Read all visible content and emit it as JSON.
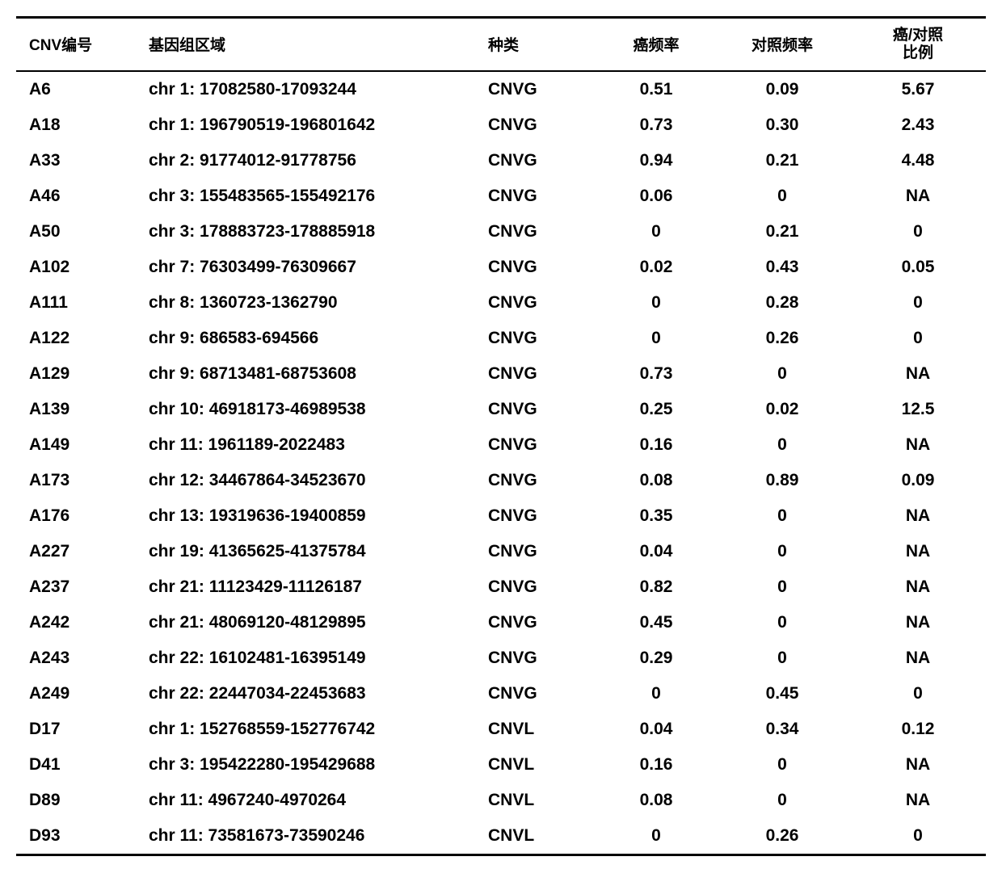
{
  "columns": [
    {
      "key": "id",
      "label": "CNV编号",
      "class": "col-id"
    },
    {
      "key": "region",
      "label": "基因组区域",
      "class": "col-region"
    },
    {
      "key": "type",
      "label": "种类",
      "class": "col-type"
    },
    {
      "key": "cancer_freq",
      "label": "癌频率",
      "class": "col-cancer"
    },
    {
      "key": "control_freq",
      "label": "对照频率",
      "class": "col-control"
    },
    {
      "key": "ratio",
      "label": "癌/对照\n比例",
      "class": "col-ratio"
    }
  ],
  "rows": [
    {
      "id": "A6",
      "region": "chr 1: 17082580-17093244",
      "type": "CNVG",
      "cancer_freq": "0.51",
      "control_freq": "0.09",
      "ratio": "5.67"
    },
    {
      "id": "A18",
      "region": "chr 1: 196790519-196801642",
      "type": "CNVG",
      "cancer_freq": "0.73",
      "control_freq": "0.30",
      "ratio": "2.43"
    },
    {
      "id": "A33",
      "region": "chr 2: 91774012-91778756",
      "type": "CNVG",
      "cancer_freq": "0.94",
      "control_freq": "0.21",
      "ratio": "4.48"
    },
    {
      "id": "A46",
      "region": "chr 3: 155483565-155492176",
      "type": "CNVG",
      "cancer_freq": "0.06",
      "control_freq": "0",
      "ratio": "NA"
    },
    {
      "id": "A50",
      "region": "chr 3: 178883723-178885918",
      "type": "CNVG",
      "cancer_freq": "0",
      "control_freq": "0.21",
      "ratio": "0"
    },
    {
      "id": "A102",
      "region": "chr 7: 76303499-76309667",
      "type": "CNVG",
      "cancer_freq": "0.02",
      "control_freq": "0.43",
      "ratio": "0.05"
    },
    {
      "id": "A111",
      "region": "chr 8: 1360723-1362790",
      "type": "CNVG",
      "cancer_freq": "0",
      "control_freq": "0.28",
      "ratio": "0"
    },
    {
      "id": "A122",
      "region": "chr 9: 686583-694566",
      "type": "CNVG",
      "cancer_freq": "0",
      "control_freq": "0.26",
      "ratio": "0"
    },
    {
      "id": "A129",
      "region": "chr 9: 68713481-68753608",
      "type": "CNVG",
      "cancer_freq": "0.73",
      "control_freq": "0",
      "ratio": "NA"
    },
    {
      "id": "A139",
      "region": "chr 10: 46918173-46989538",
      "type": "CNVG",
      "cancer_freq": "0.25",
      "control_freq": "0.02",
      "ratio": "12.5"
    },
    {
      "id": "A149",
      "region": "chr 11: 1961189-2022483",
      "type": "CNVG",
      "cancer_freq": "0.16",
      "control_freq": "0",
      "ratio": "NA"
    },
    {
      "id": "A173",
      "region": "chr 12: 34467864-34523670",
      "type": "CNVG",
      "cancer_freq": "0.08",
      "control_freq": "0.89",
      "ratio": "0.09"
    },
    {
      "id": "A176",
      "region": "chr 13: 19319636-19400859",
      "type": "CNVG",
      "cancer_freq": "0.35",
      "control_freq": "0",
      "ratio": "NA"
    },
    {
      "id": "A227",
      "region": "chr 19: 41365625-41375784",
      "type": "CNVG",
      "cancer_freq": "0.04",
      "control_freq": "0",
      "ratio": "NA"
    },
    {
      "id": "A237",
      "region": "chr 21: 11123429-11126187",
      "type": "CNVG",
      "cancer_freq": "0.82",
      "control_freq": "0",
      "ratio": "NA"
    },
    {
      "id": "A242",
      "region": "chr 21: 48069120-48129895",
      "type": "CNVG",
      "cancer_freq": "0.45",
      "control_freq": "0",
      "ratio": "NA"
    },
    {
      "id": "A243",
      "region": "chr 22: 16102481-16395149",
      "type": "CNVG",
      "cancer_freq": "0.29",
      "control_freq": "0",
      "ratio": "NA"
    },
    {
      "id": "A249",
      "region": "chr 22: 22447034-22453683",
      "type": "CNVG",
      "cancer_freq": "0",
      "control_freq": "0.45",
      "ratio": "0"
    },
    {
      "id": "D17",
      "region": "chr 1: 152768559-152776742",
      "type": "CNVL",
      "cancer_freq": "0.04",
      "control_freq": "0.34",
      "ratio": "0.12"
    },
    {
      "id": "D41",
      "region": "chr 3: 195422280-195429688",
      "type": "CNVL",
      "cancer_freq": "0.16",
      "control_freq": "0",
      "ratio": "NA"
    },
    {
      "id": "D89",
      "region": "chr 11: 4967240-4970264",
      "type": "CNVL",
      "cancer_freq": "0.08",
      "control_freq": "0",
      "ratio": "NA"
    },
    {
      "id": "D93",
      "region": "chr 11: 73581673-73590246",
      "type": "CNVL",
      "cancer_freq": "0",
      "control_freq": "0.26",
      "ratio": "0"
    }
  ],
  "style": {
    "background_color": "#ffffff",
    "text_color": "#000000",
    "border_color": "#000000",
    "header_fontsize": 19,
    "body_fontsize": 21,
    "header_border_top_width": 3,
    "header_border_bottom_width": 2,
    "table_border_bottom_width": 3,
    "font_weight": "bold"
  }
}
